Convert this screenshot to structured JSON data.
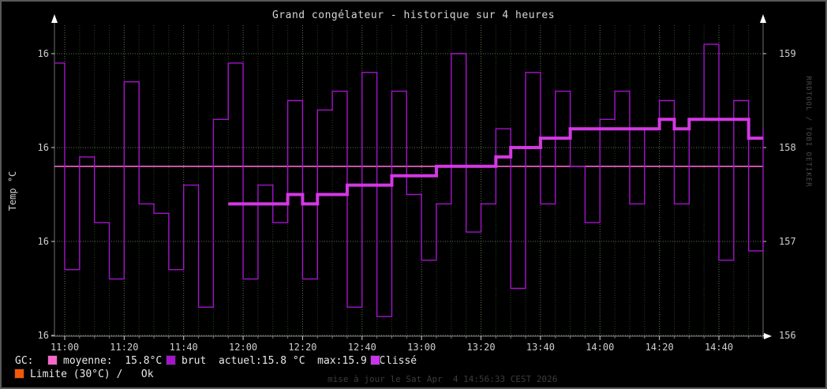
{
  "title": "Grand congélateur - historique sur 4 heures",
  "watermark": "RRDTOOL / TOBI OETIKER",
  "footer": "mise à jour le Sat Apr  4 14:56:33 CEST 2026",
  "y_axis_left": {
    "label": "Temp °C",
    "ticks": [
      "16",
      "16",
      "16",
      "16"
    ]
  },
  "y_axis_right": {
    "ticks": [
      "159",
      "158",
      "157",
      "156"
    ]
  },
  "legend": {
    "prefix": "GC:",
    "items": [
      {
        "swatch_color": "#f567c9",
        "text": "moyenne:  15.8°C"
      },
      {
        "swatch_color": "#a414cb",
        "text": "brut  actuel:15.8 °C  max:15.9 °C"
      },
      {
        "swatch_color": "#c935ec",
        "text": "lissé"
      }
    ],
    "row2": {
      "swatch_color": "#f35806",
      "text": "Limite (30°C) /   Ok"
    }
  },
  "stats": {
    "moyenne": "15.8°C",
    "actuel": "15.8 °C",
    "max": "15.9 °C",
    "limite": "30°C",
    "etat": "Ok"
  },
  "chart_data": {
    "type": "line",
    "title": "Grand congélateur - historique sur 4 heures",
    "ylabel": "Temp °C",
    "xlabel": "",
    "grid": true,
    "legend_position": "bottom",
    "x_start": "10:55",
    "x_end": "15:00",
    "x_step_minutes": 5,
    "xtick_labels": [
      "11:00",
      "11:20",
      "11:40",
      "12:00",
      "12:20",
      "12:40",
      "13:00",
      "13:20",
      "13:40",
      "14:00",
      "14:20",
      "14:40"
    ],
    "xtick_minutes": [
      660,
      680,
      700,
      720,
      740,
      760,
      780,
      800,
      820,
      840,
      860,
      880
    ],
    "ylim_left_celsius": [
      15.6,
      15.93
    ],
    "ytick_values_right": [
      159,
      158,
      157,
      156
    ],
    "ytick_labels_left": [
      "16",
      "16",
      "16",
      "16"
    ],
    "series": [
      {
        "name": "moyenne",
        "style": "hline",
        "color": "#f567c9",
        "width": 1.6,
        "value": 15.78
      },
      {
        "name": "brut",
        "style": "step",
        "color": "#a414cb",
        "width": 1.4,
        "start_minute": 655,
        "step_minutes": 5,
        "values": [
          15.89,
          15.67,
          15.79,
          15.72,
          15.66,
          15.87,
          15.74,
          15.73,
          15.67,
          15.76,
          15.63,
          15.83,
          15.89,
          15.66,
          15.76,
          15.72,
          15.85,
          15.66,
          15.84,
          15.86,
          15.63,
          15.88,
          15.62,
          15.86,
          15.75,
          15.68,
          15.74,
          15.9,
          15.71,
          15.74,
          15.82,
          15.65,
          15.88,
          15.74,
          15.86,
          15.78,
          15.72,
          15.83,
          15.86,
          15.74,
          15.82,
          15.85,
          15.74,
          15.83,
          15.91,
          15.68,
          15.85,
          15.69,
          15.82
        ]
      },
      {
        "name": "lissé",
        "style": "step",
        "color": "#d338e3",
        "width": 4,
        "start_minute": 715,
        "step_minutes": 5,
        "values": [
          15.74,
          15.74,
          15.74,
          15.74,
          15.75,
          15.74,
          15.75,
          15.75,
          15.76,
          15.76,
          15.76,
          15.77,
          15.77,
          15.77,
          15.78,
          15.78,
          15.78,
          15.78,
          15.79,
          15.8,
          15.8,
          15.81,
          15.81,
          15.82,
          15.82,
          15.82,
          15.82,
          15.82,
          15.82,
          15.83,
          15.82,
          15.83,
          15.83,
          15.83,
          15.83,
          15.81,
          15.81
        ]
      }
    ]
  }
}
